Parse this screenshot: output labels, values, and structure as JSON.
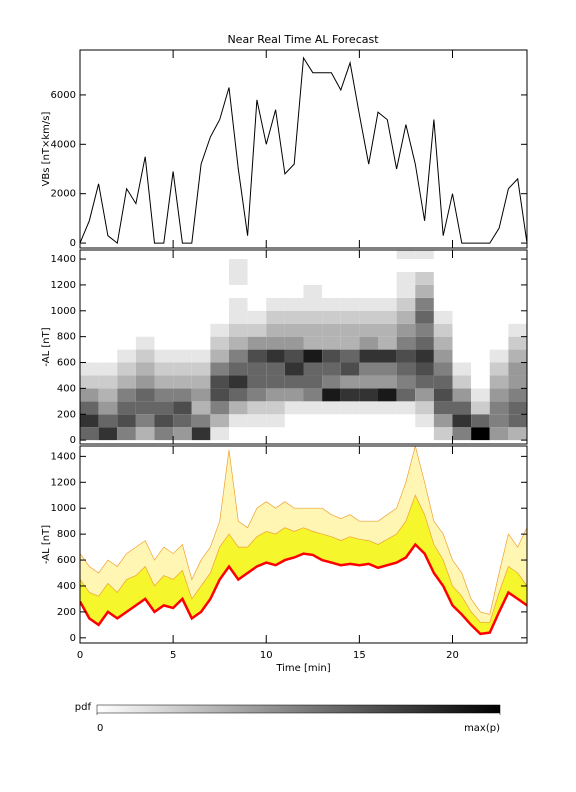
{
  "chart_data": [
    {
      "type": "line",
      "title": "Near Real Time AL Forecast",
      "ylabel": "VBs [nT×km/s]",
      "x": [
        0,
        0.5,
        1,
        1.5,
        2,
        2.5,
        3,
        3.5,
        4,
        4.5,
        5,
        5.5,
        6,
        6.5,
        7,
        7.5,
        8,
        8.5,
        9,
        9.5,
        10,
        10.5,
        11,
        11.5,
        12,
        12.5,
        13,
        13.5,
        14,
        14.5,
        15,
        15.5,
        16,
        16.5,
        17,
        17.5,
        18,
        18.5,
        19,
        19.5,
        20,
        20.5,
        21,
        21.5,
        22,
        22.5,
        23,
        23.5,
        24
      ],
      "values": [
        0,
        900,
        2400,
        300,
        0,
        2200,
        1600,
        3500,
        0,
        0,
        2900,
        0,
        0,
        3200,
        4300,
        5000,
        6300,
        3000,
        300,
        5800,
        4000,
        5400,
        2800,
        3200,
        7500,
        6900,
        6900,
        6900,
        6200,
        7300,
        5200,
        3200,
        5300,
        5000,
        3000,
        4800,
        3200,
        900,
        5000,
        300,
        2000,
        0,
        0,
        0,
        0,
        600,
        2200,
        2600,
        0
      ],
      "color": "#000000",
      "xlim": [
        0,
        24
      ],
      "xticks": [
        0,
        5,
        10,
        15,
        20
      ],
      "ylim": [
        -200,
        7820
      ],
      "yticks": [
        0,
        2000,
        4000,
        6000
      ]
    },
    {
      "type": "heatmap",
      "ylabel": "-AL [nT]",
      "x_bins": [
        0,
        1,
        2,
        3,
        4,
        5,
        6,
        7,
        8,
        9,
        10,
        11,
        12,
        13,
        14,
        15,
        16,
        17,
        18,
        19,
        20,
        21,
        22,
        23,
        24
      ],
      "y_bins": [
        0,
        100,
        200,
        300,
        400,
        500,
        600,
        700,
        800,
        900,
        1000,
        1100,
        1200,
        1300,
        1400,
        1500
      ],
      "values": [
        [
          0.6,
          0.8,
          0.6,
          0.4,
          0.2,
          0.1,
          0,
          0,
          0,
          0,
          0,
          0,
          0,
          0,
          0
        ],
        [
          0.8,
          0.6,
          0.4,
          0.3,
          0.2,
          0.1,
          0,
          0,
          0,
          0,
          0,
          0,
          0,
          0,
          0
        ],
        [
          0.5,
          0.7,
          0.6,
          0.5,
          0.3,
          0.2,
          0.1,
          0,
          0,
          0,
          0,
          0,
          0,
          0,
          0
        ],
        [
          0.3,
          0.5,
          0.6,
          0.6,
          0.4,
          0.3,
          0.2,
          0.1,
          0,
          0,
          0,
          0,
          0,
          0,
          0
        ],
        [
          0.5,
          0.7,
          0.6,
          0.5,
          0.3,
          0.2,
          0.1,
          0,
          0,
          0,
          0,
          0,
          0,
          0,
          0
        ],
        [
          0.4,
          0.6,
          0.7,
          0.5,
          0.3,
          0.2,
          0.1,
          0,
          0,
          0,
          0,
          0,
          0,
          0,
          0
        ],
        [
          0.8,
          0.5,
          0.3,
          0.4,
          0.3,
          0.2,
          0.1,
          0,
          0,
          0,
          0,
          0,
          0,
          0,
          0
        ],
        [
          0.1,
          0.3,
          0.5,
          0.7,
          0.7,
          0.5,
          0.3,
          0.2,
          0.1,
          0,
          0,
          0,
          0,
          0,
          0
        ],
        [
          0,
          0.1,
          0.3,
          0.6,
          0.8,
          0.6,
          0.5,
          0.3,
          0.2,
          0.1,
          0.1,
          0,
          0.1,
          0.1,
          0
        ],
        [
          0,
          0.1,
          0.2,
          0.5,
          0.6,
          0.6,
          0.7,
          0.4,
          0.2,
          0.1,
          0,
          0,
          0,
          0,
          0
        ],
        [
          0,
          0.1,
          0.2,
          0.4,
          0.6,
          0.6,
          0.8,
          0.4,
          0.3,
          0.2,
          0.1,
          0,
          0,
          0,
          0
        ],
        [
          0,
          0,
          0.1,
          0.4,
          0.6,
          0.8,
          0.7,
          0.4,
          0.3,
          0.2,
          0.1,
          0,
          0,
          0,
          0
        ],
        [
          0,
          0,
          0.1,
          0.5,
          0.6,
          0.6,
          0.9,
          0.3,
          0.3,
          0.2,
          0.1,
          0.1,
          0,
          0,
          0
        ],
        [
          0,
          0,
          0.1,
          0.9,
          0.5,
          0.6,
          0.7,
          0.3,
          0.3,
          0.2,
          0.1,
          0,
          0,
          0,
          0
        ],
        [
          0,
          0,
          0.1,
          0.8,
          0.4,
          0.7,
          0.6,
          0.3,
          0.3,
          0.2,
          0.1,
          0,
          0,
          0,
          0
        ],
        [
          0,
          0,
          0.1,
          0.8,
          0.4,
          0.5,
          0.8,
          0.4,
          0.3,
          0.2,
          0.1,
          0,
          0,
          0,
          0
        ],
        [
          0,
          0,
          0.1,
          0.9,
          0.4,
          0.5,
          0.8,
          0.3,
          0.3,
          0.2,
          0.1,
          0,
          0,
          0,
          0
        ],
        [
          0,
          0,
          0.1,
          0.6,
          0.5,
          0.6,
          0.7,
          0.5,
          0.4,
          0.3,
          0.2,
          0.1,
          0.1,
          0,
          0.1
        ],
        [
          0,
          0.1,
          0.2,
          0.4,
          0.6,
          0.7,
          0.8,
          0.6,
          0.5,
          0.6,
          0.5,
          0.3,
          0.2,
          0,
          0.1
        ],
        [
          0.2,
          0.4,
          0.6,
          0.7,
          0.6,
          0.5,
          0.4,
          0.3,
          0.2,
          0.1,
          0,
          0,
          0,
          0,
          0
        ],
        [
          0.5,
          0.8,
          0.6,
          0.4,
          0.2,
          0.1,
          0,
          0,
          0,
          0,
          0,
          0,
          0,
          0,
          0
        ],
        [
          1,
          0.6,
          0.2,
          0.1,
          0,
          0,
          0,
          0,
          0,
          0,
          0,
          0,
          0,
          0,
          0
        ],
        [
          0.4,
          0.5,
          0.5,
          0.4,
          0.3,
          0.2,
          0.1,
          0,
          0,
          0,
          0,
          0,
          0,
          0,
          0
        ],
        [
          0.3,
          0.6,
          0.6,
          0.5,
          0.4,
          0.4,
          0.3,
          0.2,
          0.1,
          0,
          0,
          0,
          0,
          0,
          0
        ]
      ],
      "xlim": [
        0,
        24
      ],
      "xticks": [
        0,
        5,
        10,
        15,
        20
      ],
      "ylim": [
        -30,
        1470
      ],
      "yticks": [
        0,
        200,
        400,
        600,
        800,
        1000,
        1200,
        1400
      ],
      "colorbar_label": "pdf",
      "colorbar_ticks": [
        0,
        {
          "value": 1,
          "label": "max(p)"
        }
      ]
    },
    {
      "type": "band",
      "ylabel": "-AL [nT]",
      "xlabel": "Time [min]",
      "x": [
        0,
        0.5,
        1,
        1.5,
        2,
        2.5,
        3,
        3.5,
        4,
        4.5,
        5,
        5.5,
        6,
        6.5,
        7,
        7.5,
        8,
        8.5,
        9,
        9.5,
        10,
        10.5,
        11,
        11.5,
        12,
        12.5,
        13,
        13.5,
        14,
        14.5,
        15,
        15.5,
        16,
        16.5,
        17,
        17.5,
        18,
        18.5,
        19,
        19.5,
        20,
        20.5,
        21,
        21.5,
        22,
        22.5,
        23,
        23.5,
        24
      ],
      "series": [
        {
          "color": "#ff0000",
          "values": [
            280,
            150,
            100,
            200,
            150,
            200,
            250,
            300,
            200,
            250,
            230,
            300,
            150,
            200,
            300,
            450,
            550,
            450,
            500,
            550,
            580,
            560,
            600,
            620,
            650,
            640,
            600,
            580,
            560,
            570,
            560,
            570,
            540,
            560,
            580,
            620,
            720,
            650,
            500,
            400,
            250,
            180,
            100,
            30,
            40,
            200,
            350,
            300,
            250
          ]
        },
        {
          "color": "#f6f62c",
          "values": [
            450,
            350,
            320,
            420,
            350,
            450,
            480,
            550,
            400,
            480,
            450,
            520,
            300,
            400,
            500,
            700,
            800,
            700,
            700,
            780,
            820,
            800,
            850,
            820,
            850,
            820,
            800,
            780,
            750,
            780,
            760,
            750,
            720,
            760,
            800,
            900,
            1100,
            950,
            720,
            600,
            400,
            320,
            200,
            120,
            120,
            350,
            550,
            500,
            400
          ]
        },
        {
          "color": "#fff6b4",
          "values": [
            650,
            550,
            500,
            600,
            550,
            650,
            700,
            750,
            600,
            700,
            650,
            720,
            450,
            600,
            700,
            900,
            1450,
            900,
            850,
            1000,
            1050,
            1000,
            1050,
            1000,
            1000,
            1000,
            1000,
            950,
            920,
            950,
            900,
            900,
            900,
            950,
            1000,
            1200,
            1480,
            1200,
            900,
            800,
            600,
            500,
            300,
            200,
            180,
            500,
            800,
            700,
            850
          ]
        }
      ],
      "xlim": [
        0,
        24
      ],
      "xticks": [
        0,
        5,
        10,
        15,
        20
      ],
      "ylim": [
        -40,
        1480
      ],
      "yticks": [
        0,
        200,
        400,
        600,
        800,
        1000,
        1200,
        1400
      ]
    }
  ]
}
